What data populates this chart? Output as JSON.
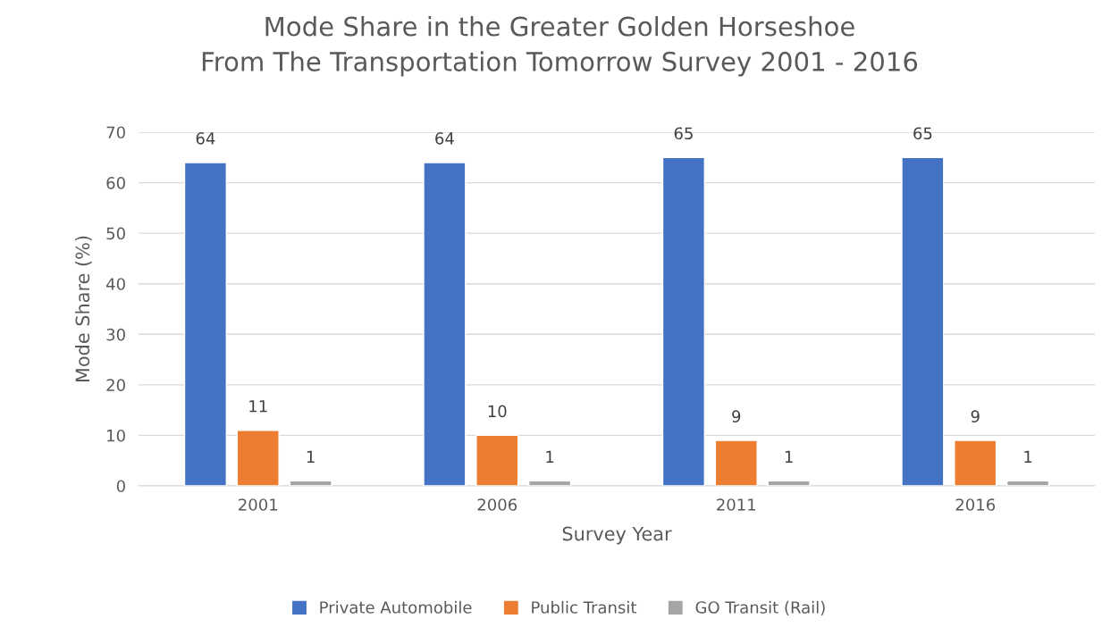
{
  "chart_data": {
    "type": "bar",
    "title": "Mode Share in the Greater Golden Horseshoe\nFrom The Transportation Tomorrow Survey 2001 - 2016",
    "xlabel": "Survey Year",
    "ylabel": "Mode Share (%)",
    "categories": [
      "2001",
      "2006",
      "2011",
      "2016"
    ],
    "series": [
      {
        "name": "Private Automobile",
        "color": "#4472c4",
        "values": [
          64,
          64,
          65,
          65
        ]
      },
      {
        "name": "Public Transit",
        "color": "#ed7d31",
        "values": [
          11,
          10,
          9,
          9
        ]
      },
      {
        "name": "GO Transit (Rail)",
        "color": "#a5a5a5",
        "values": [
          1,
          1,
          1,
          1
        ]
      }
    ],
    "ylim": [
      0,
      70
    ],
    "yticks": [
      0,
      10,
      20,
      30,
      40,
      50,
      60,
      70
    ],
    "grid": "y",
    "legend": "bottom",
    "data_labels": true
  }
}
